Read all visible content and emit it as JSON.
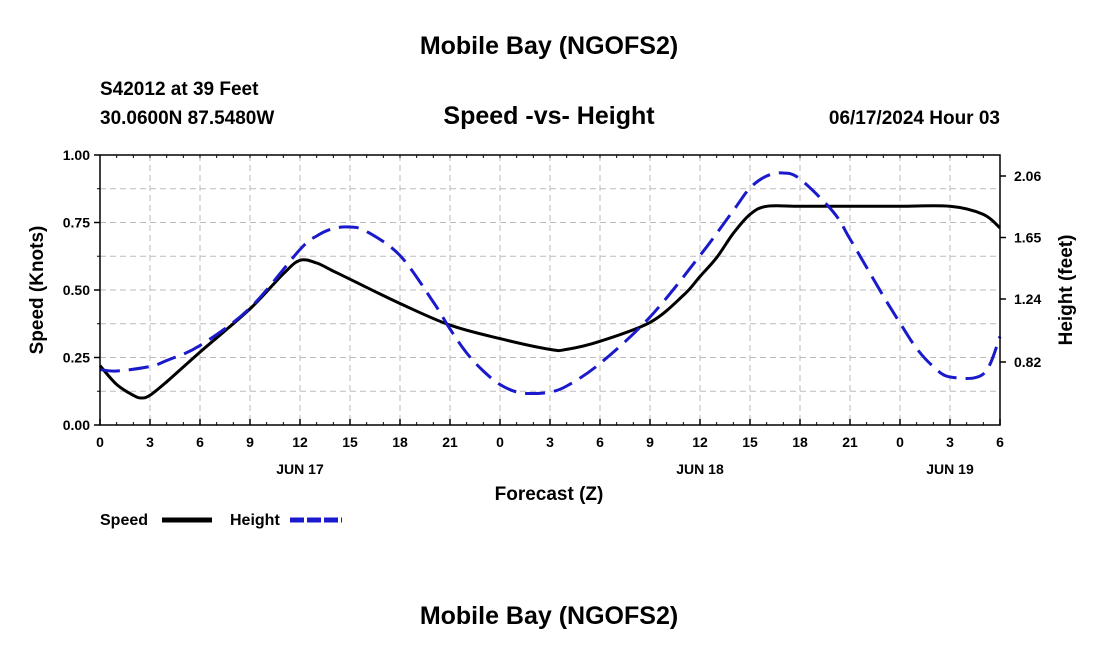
{
  "header": {
    "title": "Mobile Bay (NGOFS2)",
    "station": "S42012 at 39 Feet",
    "coords": "30.0600N  87.5480W",
    "subtitle": "Speed -vs- Height",
    "datetime": "06/17/2024 Hour 03"
  },
  "footer": {
    "title": "Mobile Bay (NGOFS2)"
  },
  "legend": {
    "speed_label": "Speed",
    "height_label": "Height"
  },
  "chart_data": {
    "type": "line",
    "title": "Speed -vs- Height",
    "xlabel": "Forecast (Z)",
    "ylabel": "Speed (Knots)",
    "y2label": "Height (feet)",
    "xlim": [
      0,
      54
    ],
    "ylim": [
      0,
      1.0
    ],
    "y2lim": [
      0.4,
      2.2
    ],
    "grid": true,
    "legend_position": "bottom-left",
    "x_tick_labels": [
      "0",
      "3",
      "6",
      "9",
      "12",
      "15",
      "18",
      "21",
      "0",
      "3",
      "6",
      "9",
      "12",
      "15",
      "18",
      "21",
      "0",
      "3",
      "6"
    ],
    "y_tick_labels": [
      "0.00",
      "0.25",
      "0.50",
      "0.75",
      "1.00"
    ],
    "y2_tick_labels": [
      "0.82",
      "1.24",
      "1.65",
      "2.06"
    ],
    "date_labels": [
      {
        "label": "JUN 17",
        "x": 12
      },
      {
        "label": "JUN 18",
        "x": 36
      },
      {
        "label": "JUN 19",
        "x": 51
      }
    ],
    "colors": {
      "speed": "#000000",
      "height": "#1a1acc",
      "grid": "#bbbbbb"
    },
    "series": [
      {
        "name": "Speed",
        "axis": "left",
        "x": [
          0,
          1,
          2,
          2.5,
          3,
          4,
          6,
          9,
          11,
          12,
          13,
          14,
          15,
          18,
          21,
          24,
          27,
          28,
          30,
          33,
          35,
          36,
          37,
          38,
          39,
          40,
          42,
          45,
          48,
          51,
          53,
          54
        ],
        "values": [
          0.22,
          0.15,
          0.11,
          0.1,
          0.11,
          0.16,
          0.27,
          0.43,
          0.56,
          0.61,
          0.6,
          0.57,
          0.54,
          0.45,
          0.37,
          0.32,
          0.28,
          0.28,
          0.31,
          0.38,
          0.48,
          0.55,
          0.62,
          0.71,
          0.78,
          0.81,
          0.81,
          0.81,
          0.81,
          0.81,
          0.78,
          0.73
        ]
      },
      {
        "name": "Height",
        "axis": "right",
        "x": [
          0,
          1,
          3,
          4,
          6,
          9,
          12,
          13,
          14,
          15,
          16,
          18,
          20,
          21,
          22,
          23,
          24,
          25,
          26,
          27,
          28,
          30,
          33,
          36,
          38,
          39,
          40,
          41,
          42,
          44,
          45,
          46,
          47,
          48,
          49,
          50,
          51,
          53,
          54
        ],
        "values": [
          0.77,
          0.76,
          0.79,
          0.83,
          0.93,
          1.18,
          1.57,
          1.66,
          1.71,
          1.72,
          1.69,
          1.53,
          1.22,
          1.04,
          0.88,
          0.76,
          0.67,
          0.62,
          0.61,
          0.62,
          0.66,
          0.81,
          1.12,
          1.53,
          1.83,
          1.98,
          2.06,
          2.08,
          2.04,
          1.82,
          1.64,
          1.45,
          1.26,
          1.08,
          0.91,
          0.79,
          0.72,
          0.74,
          0.99
        ]
      }
    ]
  }
}
